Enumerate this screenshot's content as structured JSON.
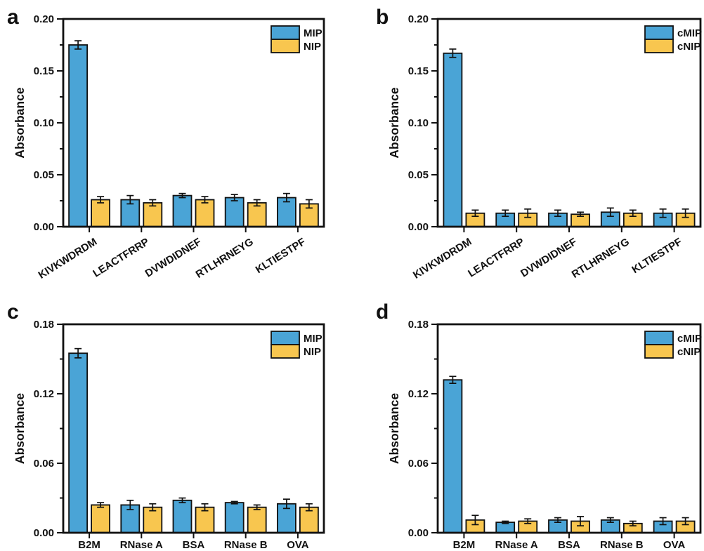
{
  "figure": {
    "background": "#ffffff",
    "axis_color": "#111111",
    "bar_border_color": "#111111",
    "bar_colors": {
      "blue": "#4AA4D6",
      "yellow": "#F8C64F"
    }
  },
  "chart_data": [
    {
      "type": "bar",
      "panel_label": "a",
      "ylabel": "Absorbance",
      "ylim": [
        0,
        0.2
      ],
      "ytick_labels": [
        "0.00",
        "0.05",
        "0.10",
        "0.15",
        "0.20"
      ],
      "ytick_step": 0.05,
      "yminor_step": 0.025,
      "grid": false,
      "legend_position": "top-right-inside",
      "categories": [
        "KIVKWDRDM",
        "LEACTFRRP",
        "DVWDIDNEF",
        "RTLHRNEYG",
        "KLTIESTPF"
      ],
      "category_rotation": -32,
      "series": [
        {
          "name": "MIP",
          "color": "blue",
          "values": [
            0.175,
            0.026,
            0.03,
            0.028,
            0.028
          ],
          "errors": [
            0.004,
            0.004,
            0.002,
            0.003,
            0.004
          ]
        },
        {
          "name": "NIP",
          "color": "yellow",
          "values": [
            0.026,
            0.023,
            0.026,
            0.023,
            0.022
          ],
          "errors": [
            0.003,
            0.003,
            0.003,
            0.003,
            0.004
          ]
        }
      ]
    },
    {
      "type": "bar",
      "panel_label": "b",
      "ylabel": "Absorbance",
      "ylim": [
        0,
        0.2
      ],
      "ytick_labels": [
        "0.00",
        "0.05",
        "0.10",
        "0.15",
        "0.20"
      ],
      "ytick_step": 0.05,
      "yminor_step": 0.025,
      "grid": false,
      "legend_position": "top-right-inside",
      "categories": [
        "KIVKWDRDM",
        "LEACTFRRP",
        "DVWDIDNEF",
        "RTLHRNEYG",
        "KLTIESTPF"
      ],
      "category_rotation": -32,
      "series": [
        {
          "name": "cMIP",
          "color": "blue",
          "values": [
            0.167,
            0.013,
            0.013,
            0.014,
            0.013
          ],
          "errors": [
            0.004,
            0.003,
            0.003,
            0.004,
            0.004
          ]
        },
        {
          "name": "cNIP",
          "color": "yellow",
          "values": [
            0.013,
            0.013,
            0.012,
            0.013,
            0.013
          ],
          "errors": [
            0.003,
            0.004,
            0.002,
            0.003,
            0.004
          ]
        }
      ]
    },
    {
      "type": "bar",
      "panel_label": "c",
      "ylabel": "Absorbance",
      "ylim": [
        0,
        0.18
      ],
      "ytick_labels": [
        "0.00",
        "0.06",
        "0.12",
        "0.18"
      ],
      "ytick_step": 0.06,
      "yminor_step": 0.03,
      "grid": false,
      "legend_position": "top-right-inside",
      "categories": [
        "B2M",
        "RNase A",
        "BSA",
        "RNase B",
        "OVA"
      ],
      "category_rotation": 0,
      "series": [
        {
          "name": "MIP",
          "color": "blue",
          "values": [
            0.155,
            0.024,
            0.028,
            0.026,
            0.025
          ],
          "errors": [
            0.004,
            0.004,
            0.002,
            0.001,
            0.004
          ]
        },
        {
          "name": "NIP",
          "color": "yellow",
          "values": [
            0.024,
            0.022,
            0.022,
            0.022,
            0.022
          ],
          "errors": [
            0.002,
            0.003,
            0.003,
            0.002,
            0.003
          ]
        }
      ]
    },
    {
      "type": "bar",
      "panel_label": "d",
      "ylabel": "Absorbance",
      "ylim": [
        0,
        0.18
      ],
      "ytick_labels": [
        "0.00",
        "0.06",
        "0.12",
        "0.18"
      ],
      "ytick_step": 0.06,
      "yminor_step": 0.03,
      "grid": false,
      "legend_position": "top-right-inside",
      "categories": [
        "B2M",
        "RNase A",
        "BSA",
        "RNase B",
        "OVA"
      ],
      "category_rotation": 0,
      "series": [
        {
          "name": "cMIP",
          "color": "blue",
          "values": [
            0.132,
            0.009,
            0.011,
            0.011,
            0.01
          ],
          "errors": [
            0.003,
            0.001,
            0.002,
            0.002,
            0.003
          ]
        },
        {
          "name": "cNIP",
          "color": "yellow",
          "values": [
            0.011,
            0.01,
            0.01,
            0.008,
            0.01
          ],
          "errors": [
            0.004,
            0.002,
            0.004,
            0.002,
            0.003
          ]
        }
      ]
    }
  ]
}
